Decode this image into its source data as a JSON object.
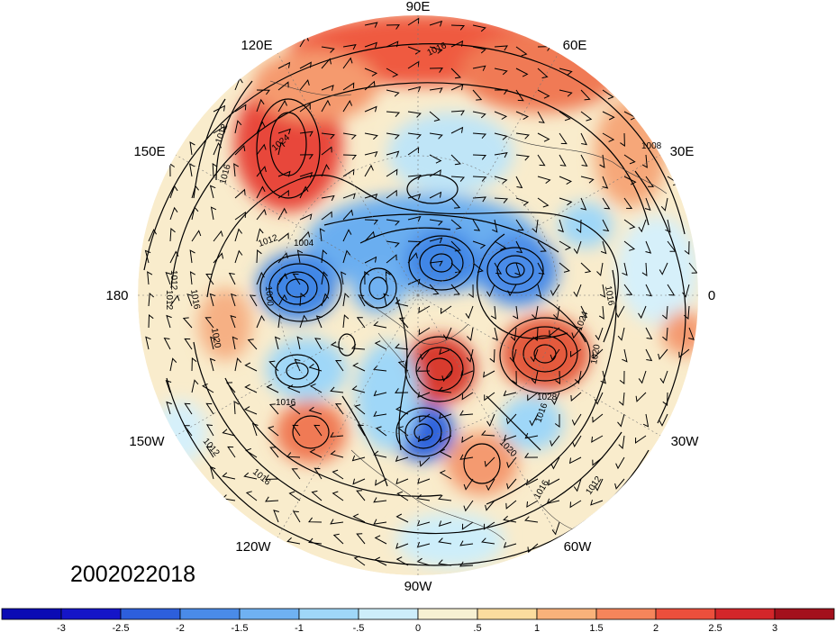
{
  "map": {
    "projection": "north-polar-stereographic",
    "longitude_labels": [
      "90E",
      "60E",
      "30E",
      "0",
      "30W",
      "60W",
      "90W",
      "120W",
      "150W",
      "180",
      "150E",
      "120E"
    ],
    "isobar_labels": [
      "1016",
      "1012",
      "1024",
      "1016",
      "1008",
      "1012",
      "1004",
      "1016",
      "1012",
      "1000",
      "1020",
      "1016",
      "1024",
      "1020",
      "1028",
      "1016",
      "1020",
      "1016",
      "1012",
      "1012",
      "1016",
      "1016",
      "1012"
    ],
    "date_stamp": "2002022018"
  },
  "colorbar": {
    "tick_labels": [
      "-3",
      "-2.5",
      "-2",
      "-1.5",
      "-1",
      "-.5",
      "0",
      ".5",
      "1",
      "1.5",
      "2",
      "2.5",
      "3"
    ],
    "colors": [
      "#1515c8",
      "#2d5fdc",
      "#4a8be8",
      "#6fb1f2",
      "#9fd7f8",
      "#cdeefa",
      "#f7f1d2",
      "#fbdc9e",
      "#f9b27a",
      "#f5855b",
      "#ec4f3c",
      "#d3262a",
      "#a3101c"
    ]
  }
}
